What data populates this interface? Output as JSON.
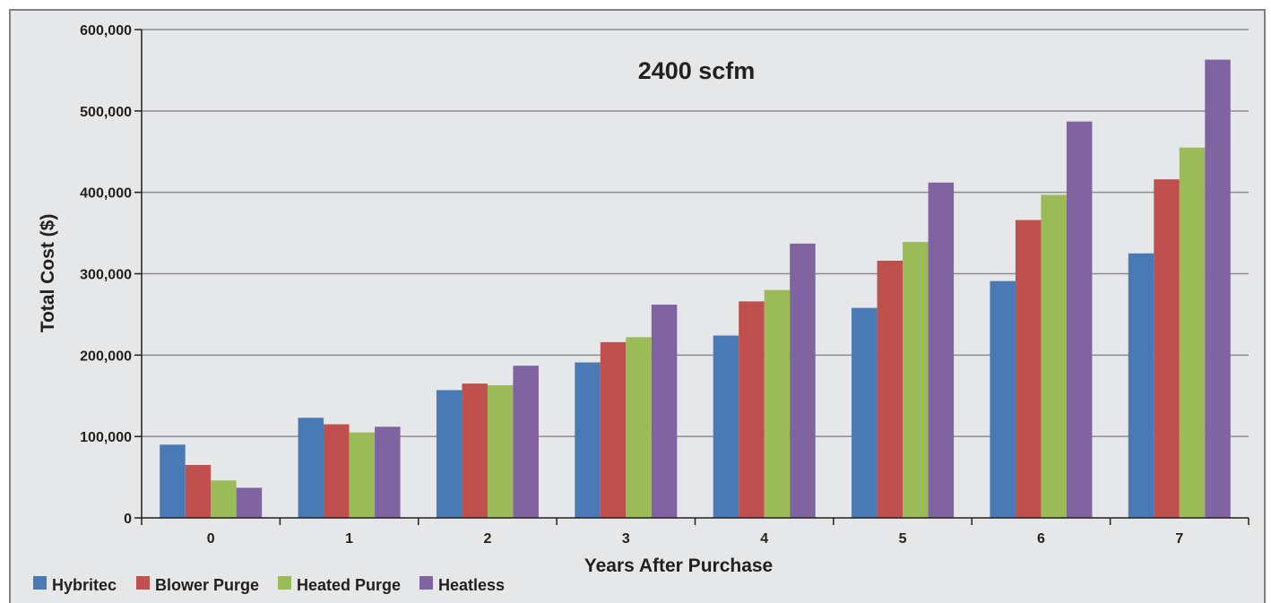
{
  "chart_data": {
    "type": "bar",
    "title": "2400 scfm",
    "xlabel": "Years After Purchase",
    "ylabel": "Total Cost ($)",
    "categories": [
      "0",
      "1",
      "2",
      "3",
      "4",
      "5",
      "6",
      "7"
    ],
    "ylim": [
      0,
      600000
    ],
    "yticks": [
      0,
      100000,
      200000,
      300000,
      400000,
      500000,
      600000
    ],
    "ytick_labels": [
      "0",
      "100,000",
      "200,000",
      "300,000",
      "400,000",
      "500,000",
      "600,000"
    ],
    "grid": true,
    "legend_position": "bottom-left",
    "series": [
      {
        "name": "Hybritec",
        "color": "#4a7ab5",
        "values": [
          90000,
          123000,
          157000,
          191000,
          224000,
          258000,
          291000,
          325000
        ]
      },
      {
        "name": "Blower Purge",
        "color": "#c0504d",
        "values": [
          65000,
          115000,
          165000,
          216000,
          266000,
          316000,
          366000,
          416000
        ]
      },
      {
        "name": "Heated Purge",
        "color": "#9bbb59",
        "values": [
          46000,
          105000,
          163000,
          222000,
          280000,
          339000,
          397000,
          455000
        ]
      },
      {
        "name": "Heatless",
        "color": "#8064a2",
        "values": [
          37000,
          112000,
          187000,
          262000,
          337000,
          412000,
          487000,
          563000
        ]
      }
    ]
  }
}
